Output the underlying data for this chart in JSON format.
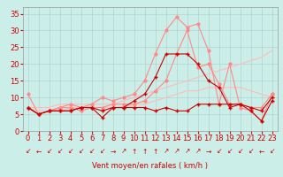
{
  "title": "",
  "xlabel": "Vent moyen/en rafales ( km/h )",
  "ylabel": "",
  "xlim": [
    -0.5,
    23.5
  ],
  "ylim": [
    0,
    37
  ],
  "yticks": [
    0,
    5,
    10,
    15,
    20,
    25,
    30,
    35
  ],
  "xticks": [
    0,
    1,
    2,
    3,
    4,
    5,
    6,
    7,
    8,
    9,
    10,
    11,
    12,
    13,
    14,
    15,
    16,
    17,
    18,
    19,
    20,
    21,
    22,
    23
  ],
  "background_color": "#cceee8",
  "grid_color": "#aacccc",
  "lines": [
    {
      "x": [
        0,
        1,
        2,
        3,
        4,
        5,
        6,
        7,
        8,
        9,
        10,
        11,
        12,
        13,
        14,
        15,
        16,
        17,
        18,
        19,
        20,
        21,
        22,
        23
      ],
      "y": [
        7,
        5,
        6,
        6,
        6,
        7,
        7,
        4,
        7,
        7,
        7,
        7,
        6,
        7,
        6,
        6,
        8,
        8,
        8,
        8,
        8,
        6,
        3,
        9
      ],
      "color": "#cc0000",
      "linewidth": 0.8,
      "marker": "+",
      "markersize": 3,
      "zorder": 4
    },
    {
      "x": [
        0,
        1,
        2,
        3,
        4,
        5,
        6,
        7,
        8,
        9,
        10,
        11,
        12,
        13,
        14,
        15,
        16,
        17,
        18,
        19,
        20,
        21,
        22,
        23
      ],
      "y": [
        7,
        5,
        6,
        6,
        6,
        7,
        7,
        6,
        7,
        7,
        9,
        11,
        16,
        23,
        23,
        23,
        20,
        15,
        13,
        7,
        8,
        7,
        6,
        10
      ],
      "color": "#cc0000",
      "linewidth": 0.8,
      "marker": "+",
      "markersize": 3,
      "zorder": 4
    },
    {
      "x": [
        0,
        1,
        2,
        3,
        4,
        5,
        6,
        7,
        8,
        9,
        10,
        11,
        12,
        13,
        14,
        15,
        16,
        17,
        18,
        19,
        20,
        21,
        22,
        23
      ],
      "y": [
        11,
        5,
        6,
        7,
        7,
        6,
        7,
        7,
        8,
        8,
        8,
        9,
        12,
        15,
        23,
        30,
        19,
        20,
        14,
        8,
        8,
        7,
        7,
        11
      ],
      "color": "#ff8888",
      "linewidth": 0.8,
      "marker": "o",
      "markersize": 2,
      "zorder": 3
    },
    {
      "x": [
        0,
        1,
        2,
        3,
        4,
        5,
        6,
        7,
        8,
        9,
        10,
        11,
        12,
        13,
        14,
        15,
        16,
        17,
        18,
        19,
        20,
        21,
        22,
        23
      ],
      "y": [
        7,
        5,
        6,
        7,
        8,
        7,
        8,
        10,
        9,
        10,
        11,
        15,
        23,
        30,
        34,
        31,
        32,
        24,
        8,
        20,
        7,
        6,
        3,
        11
      ],
      "color": "#ff8888",
      "linewidth": 0.8,
      "marker": "o",
      "markersize": 2,
      "zorder": 3
    },
    {
      "x": [
        0,
        1,
        2,
        3,
        4,
        5,
        6,
        7,
        8,
        9,
        10,
        11,
        12,
        13,
        14,
        15,
        16,
        17,
        18,
        19,
        20,
        21,
        22,
        23
      ],
      "y": [
        7,
        7,
        7,
        8,
        8,
        8,
        8,
        8,
        8,
        9,
        10,
        11,
        12,
        13,
        14,
        15,
        16,
        17,
        18,
        19,
        20,
        21,
        22,
        24
      ],
      "color": "#ffbbbb",
      "linewidth": 0.8,
      "marker": null,
      "markersize": 0,
      "zorder": 2
    },
    {
      "x": [
        0,
        1,
        2,
        3,
        4,
        5,
        6,
        7,
        8,
        9,
        10,
        11,
        12,
        13,
        14,
        15,
        16,
        17,
        18,
        19,
        20,
        21,
        22,
        23
      ],
      "y": [
        7,
        6,
        6,
        6,
        7,
        7,
        7,
        7,
        7,
        7,
        8,
        8,
        9,
        10,
        11,
        12,
        12,
        13,
        13,
        13,
        13,
        12,
        11,
        10
      ],
      "color": "#ffbbbb",
      "linewidth": 0.8,
      "marker": null,
      "markersize": 0,
      "zorder": 2
    }
  ],
  "arrows": [
    "↙",
    "←",
    "↙",
    "↙",
    "↙",
    "↙",
    "↙",
    "↙",
    "→",
    "↗",
    "↑",
    "↑",
    "↑",
    "↗",
    "↗",
    "↗",
    "↗",
    "→",
    "↙",
    "↙",
    "↙",
    "↙",
    "←",
    "↙"
  ],
  "xlabel_color": "#cc0000",
  "tick_color": "#cc0000",
  "axis_fontsize": 6
}
